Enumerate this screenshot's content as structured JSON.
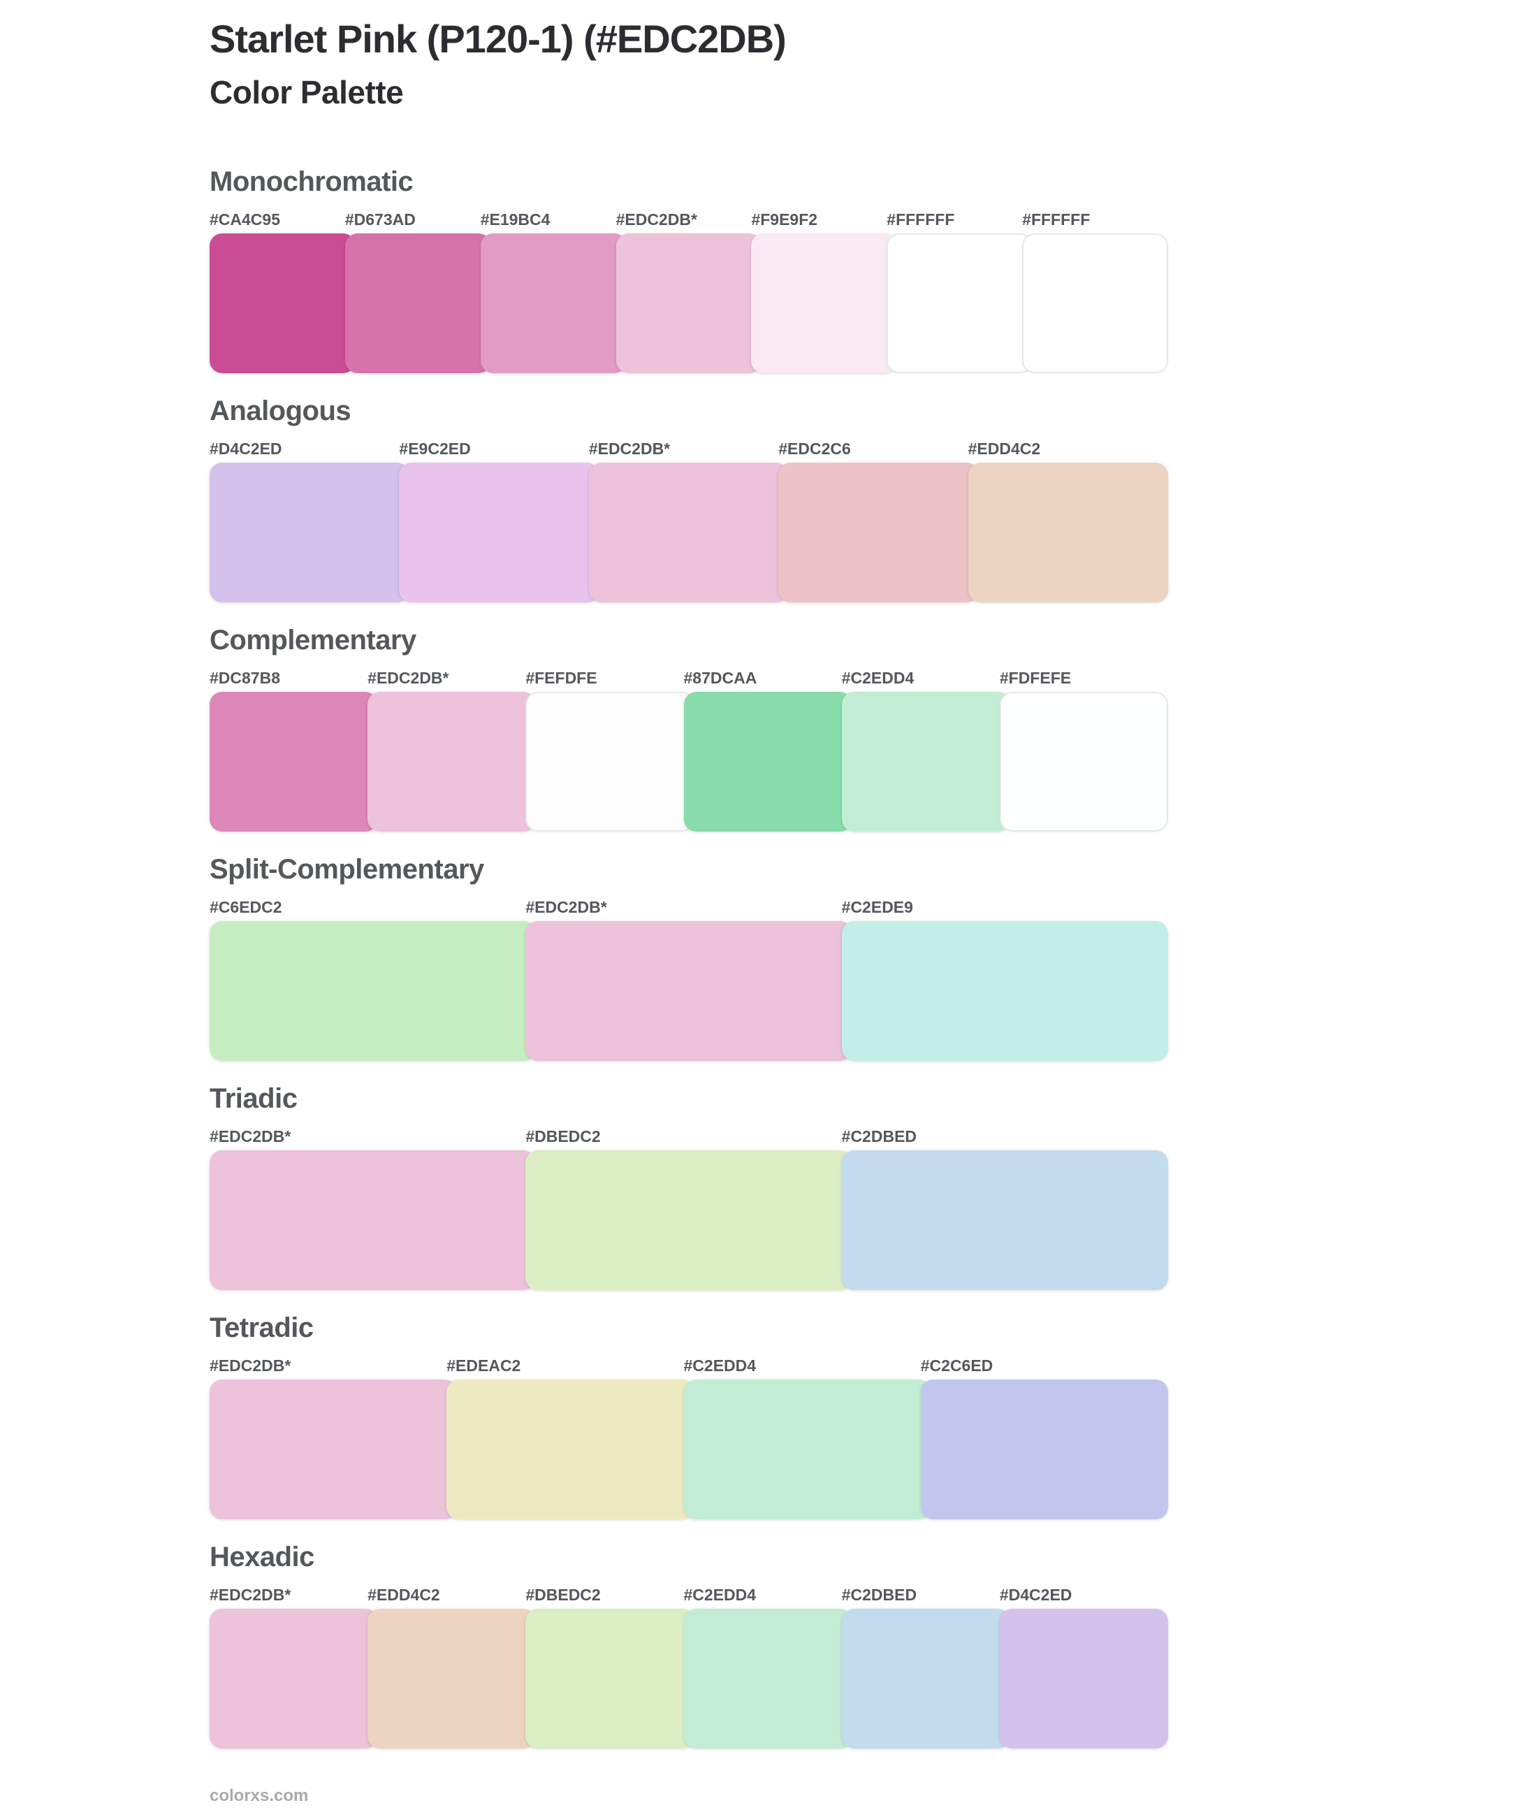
{
  "page": {
    "title": "Starlet Pink (P120-1) (#EDC2DB)",
    "subtitle": "Color Palette",
    "base_color": "#EDC2DB",
    "footer_link": "colorxs.com"
  },
  "sections": [
    {
      "name": "Monochromatic",
      "swatches": [
        {
          "label": "#CA4C95",
          "color": "#CA4C95"
        },
        {
          "label": "#D673AD",
          "color": "#D673AD"
        },
        {
          "label": "#E19BC4",
          "color": "#E19BC4"
        },
        {
          "label": "#EDC2DB*",
          "color": "#EDC2DB"
        },
        {
          "label": "#F9E9F2",
          "color": "#F9E9F2"
        },
        {
          "label": "#FFFFFF",
          "color": "#FFFFFF"
        },
        {
          "label": "#FFFFFF",
          "color": "#FFFFFF"
        }
      ]
    },
    {
      "name": "Analogous",
      "swatches": [
        {
          "label": "#D4C2ED",
          "color": "#D4C2ED"
        },
        {
          "label": "#E9C2ED",
          "color": "#E9C2ED"
        },
        {
          "label": "#EDC2DB*",
          "color": "#EDC2DB"
        },
        {
          "label": "#EDC2C6",
          "color": "#EDC2C6"
        },
        {
          "label": "#EDD4C2",
          "color": "#EDD4C2"
        }
      ]
    },
    {
      "name": "Complementary",
      "swatches": [
        {
          "label": "#DC87B8",
          "color": "#DC87B8"
        },
        {
          "label": "#EDC2DB*",
          "color": "#EDC2DB"
        },
        {
          "label": "#FEFDFE",
          "color": "#FEFDFE"
        },
        {
          "label": "#87DCAA",
          "color": "#87DCAA"
        },
        {
          "label": "#C2EDD4",
          "color": "#C2EDD4"
        },
        {
          "label": "#FDFEFE",
          "color": "#FDFEFE"
        }
      ]
    },
    {
      "name": "Split-Complementary",
      "swatches": [
        {
          "label": "#C6EDC2",
          "color": "#C6EDC2"
        },
        {
          "label": "#EDC2DB*",
          "color": "#EDC2DB"
        },
        {
          "label": "#C2EDE9",
          "color": "#C2EDE9"
        }
      ]
    },
    {
      "name": "Triadic",
      "swatches": [
        {
          "label": "#EDC2DB*",
          "color": "#EDC2DB"
        },
        {
          "label": "#DBEDC2",
          "color": "#DBEDC2"
        },
        {
          "label": "#C2DBED",
          "color": "#C2DBED"
        }
      ]
    },
    {
      "name": "Tetradic",
      "swatches": [
        {
          "label": "#EDC2DB*",
          "color": "#EDC2DB"
        },
        {
          "label": "#EDEAC2",
          "color": "#EDEAC2"
        },
        {
          "label": "#C2EDD4",
          "color": "#C2EDD4"
        },
        {
          "label": "#C2C6ED",
          "color": "#C2C6ED"
        }
      ]
    },
    {
      "name": "Hexadic",
      "swatches": [
        {
          "label": "#EDC2DB*",
          "color": "#EDC2DB"
        },
        {
          "label": "#EDD4C2",
          "color": "#EDD4C2"
        },
        {
          "label": "#DBEDC2",
          "color": "#DBEDC2"
        },
        {
          "label": "#C2EDD4",
          "color": "#C2EDD4"
        },
        {
          "label": "#C2DBED",
          "color": "#C2DBED"
        },
        {
          "label": "#D4C2ED",
          "color": "#D4C2ED"
        }
      ]
    }
  ]
}
